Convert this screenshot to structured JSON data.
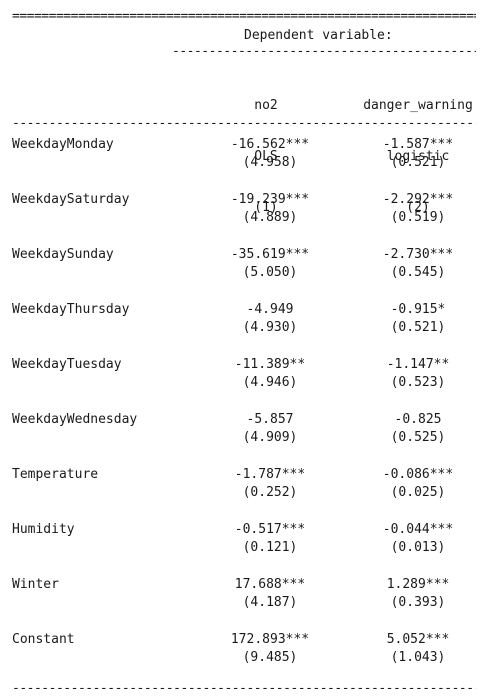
{
  "table": {
    "rule_double": "=======================================================================",
    "rule_sub": "----------------------------------------------",
    "rule_dash": "-----------------------------------------------------------------------",
    "dependent_label": "Dependent variable:",
    "columns": [
      {
        "name": "no2",
        "model": "OLS",
        "number": "(1)"
      },
      {
        "name": "danger_warning",
        "model": "logistic",
        "number": "(2)"
      }
    ],
    "rows": [
      {
        "variable": "WeekdayMonday",
        "c1": "-16.562***",
        "s1": "(4.958)",
        "c2": "-1.587***",
        "s2": "(0.521)"
      },
      {
        "variable": "WeekdaySaturday",
        "c1": "-19.239***",
        "s1": "(4.889)",
        "c2": "-2.292***",
        "s2": "(0.519)"
      },
      {
        "variable": "WeekdaySunday",
        "c1": "-35.619***",
        "s1": "(5.050)",
        "c2": "-2.730***",
        "s2": "(0.545)"
      },
      {
        "variable": "WeekdayThursday",
        "c1": "-4.949",
        "s1": "(4.930)",
        "c2": "-0.915*",
        "s2": "(0.521)"
      },
      {
        "variable": "WeekdayTuesday",
        "c1": "-11.389**",
        "s1": "(4.946)",
        "c2": "-1.147**",
        "s2": "(0.523)"
      },
      {
        "variable": "WeekdayWednesday",
        "c1": "-5.857",
        "s1": "(4.909)",
        "c2": "-0.825",
        "s2": "(0.525)"
      },
      {
        "variable": "Temperature",
        "c1": "-1.787***",
        "s1": "(0.252)",
        "c2": "-0.086***",
        "s2": "(0.025)"
      },
      {
        "variable": "Humidity",
        "c1": "-0.517***",
        "s1": "(0.121)",
        "c2": "-0.044***",
        "s2": "(0.013)"
      },
      {
        "variable": "Winter",
        "c1": "17.688***",
        "s1": "(4.187)",
        "c2": "1.289***",
        "s2": "(0.393)"
      },
      {
        "variable": "Constant",
        "c1": "172.893***",
        "s1": "(9.485)",
        "c2": "5.052***",
        "s2": "(1.043)"
      }
    ]
  }
}
